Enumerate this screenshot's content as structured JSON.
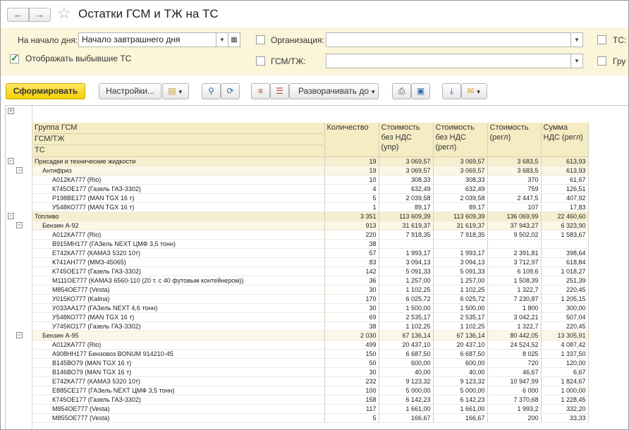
{
  "window": {
    "title": "Остатки ГСМ и ТЖ  на ТС"
  },
  "nav": {
    "back": "←",
    "forward": "→",
    "favorite": "☆"
  },
  "filters": {
    "start_label": "На начало дня:",
    "start_value": "Начало завтрашнего дня",
    "show_retired_label": "Отображать выбывшие ТС",
    "show_retired_checked": true,
    "org_label": "Организация:",
    "org_value": "",
    "fuel_label": "ГСМ/ТЖ:",
    "fuel_value": "",
    "ts_label": "ТС:",
    "group_label": "Гру"
  },
  "toolbar": {
    "generate": "Сформировать",
    "settings": "Настройки...",
    "expand": "Разворачивать до"
  },
  "table": {
    "header": {
      "group_lines": [
        "Группа ГСМ",
        "ГСМ/ТЖ",
        "ТС"
      ],
      "qty": "Количество",
      "cost_upr": [
        "Стоимость",
        "без НДС",
        "(упр)"
      ],
      "cost_regl": [
        "Стоимость",
        "без НДС",
        "(регл)"
      ],
      "cost_regl2": [
        "Стоимость",
        "(регл)"
      ],
      "vat": [
        "Сумма",
        "НДС (регл)"
      ]
    },
    "rows": [
      {
        "level": 1,
        "name": "Присадки и технические жидкости",
        "qty": "19",
        "c1": "3 069,57",
        "c2": "3 069,57",
        "c3": "3 683,5",
        "vat": "613,93"
      },
      {
        "level": 2,
        "name": "Антифриз",
        "qty": "19",
        "c1": "3 069,57",
        "c2": "3 069,57",
        "c3": "3 683,5",
        "vat": "613,93"
      },
      {
        "level": 3,
        "name": "А012КА777 (Rio)",
        "qty": "10",
        "c1": "308,33",
        "c2": "308,33",
        "c3": "370",
        "vat": "61,67"
      },
      {
        "level": 3,
        "name": "К745ОЕ177 (Газель ГАЗ-3302)",
        "qty": "4",
        "c1": "632,49",
        "c2": "632,49",
        "c3": "759",
        "vat": "126,51"
      },
      {
        "level": 3,
        "name": "Р198ВЕ177 (MAN TGX 16 т)",
        "qty": "5",
        "c1": "2 039,58",
        "c2": "2 039,58",
        "c3": "2 447,5",
        "vat": "407,92"
      },
      {
        "level": 3,
        "name": "У548КО777 (MAN TGX  16 т)",
        "qty": "1",
        "c1": "89,17",
        "c2": "89,17",
        "c3": "107",
        "vat": "17,83"
      },
      {
        "level": 1,
        "name": "Топливо",
        "qty": "3 351",
        "c1": "113 609,39",
        "c2": "113 609,39",
        "c3": "136 069,99",
        "vat": "22 460,60"
      },
      {
        "level": 2,
        "name": "Бензин А-92",
        "qty": "913",
        "c1": "31 619,37",
        "c2": "31 619,37",
        "c3": "37 943,27",
        "vat": "6 323,90"
      },
      {
        "level": 3,
        "name": "А012КА777 (Rio)",
        "qty": "220",
        "c1": "7 918,35",
        "c2": "7 918,35",
        "c3": "9 502,02",
        "vat": "1 583,67"
      },
      {
        "level": 3,
        "name": "В915МН177 (ГАЗель NEXT ЦМФ 3,5 тонн)",
        "qty": "38",
        "c1": "",
        "c2": "",
        "c3": "",
        "vat": ""
      },
      {
        "level": 3,
        "name": "Е742КА777 (КАМАЗ 5320 10т)",
        "qty": "57",
        "c1": "1 993,17",
        "c2": "1 993,17",
        "c3": "2 391,81",
        "vat": "398,64"
      },
      {
        "level": 3,
        "name": "К741АН777 (ММЗ-45065)",
        "qty": "83",
        "c1": "3 094,13",
        "c2": "3 094,13",
        "c3": "3 712,97",
        "vat": "618,84"
      },
      {
        "level": 3,
        "name": "К745ОЕ177 (Газель ГАЗ-3302)",
        "qty": "142",
        "c1": "5 091,33",
        "c2": "5 091,33",
        "c3": "6 109,6",
        "vat": "1 018,27"
      },
      {
        "level": 3,
        "name": "М111ОЕ777 (КАМАЗ 6560-110 (20 т. с 40 футовым контейнером))",
        "qty": "36",
        "c1": "1 257,00",
        "c2": "1 257,00",
        "c3": "1 508,39",
        "vat": "251,39"
      },
      {
        "level": 3,
        "name": "М854ОЕ777 (Vesta)",
        "qty": "30",
        "c1": "1 102,25",
        "c2": "1 102,25",
        "c3": "1 322,7",
        "vat": "220,45"
      },
      {
        "level": 3,
        "name": "У015КО777 (Kalina)",
        "qty": "170",
        "c1": "6 025,72",
        "c2": "6 025,72",
        "c3": "7 230,87",
        "vat": "1 205,15"
      },
      {
        "level": 3,
        "name": "У033АА177 (ГАЗель NEXT 4,6 тонн)",
        "qty": "30",
        "c1": "1 500,00",
        "c2": "1 500,00",
        "c3": "1 800",
        "vat": "300,00"
      },
      {
        "level": 3,
        "name": "У548КО777 (MAN TGX  16 т)",
        "qty": "69",
        "c1": "2 535,17",
        "c2": "2 535,17",
        "c3": "3 042,21",
        "vat": "507,04"
      },
      {
        "level": 3,
        "name": "У745КО177 (Газель ГАЗ-3302)",
        "qty": "38",
        "c1": "1 102,25",
        "c2": "1 102,25",
        "c3": "1 322,7",
        "vat": "220,45"
      },
      {
        "level": 2,
        "name": "Бензин А-95",
        "qty": "2 030",
        "c1": "67 136,14",
        "c2": "67 136,14",
        "c3": "80 442,05",
        "vat": "13 305,91"
      },
      {
        "level": 3,
        "name": "А012КА777 (Rio)",
        "qty": "499",
        "c1": "20 437,10",
        "c2": "20 437,10",
        "c3": "24 524,52",
        "vat": "4 087,42"
      },
      {
        "level": 3,
        "name": "А908НН177 Бензовоз BONUM 914210-45",
        "qty": "150",
        "c1": "6 687,50",
        "c2": "6 687,50",
        "c3": "8 025",
        "vat": "1 337,50"
      },
      {
        "level": 3,
        "name": "В145ВО79 (MAN TGX 16 т)",
        "qty": "50",
        "c1": "600,00",
        "c2": "600,00",
        "c3": "720",
        "vat": "120,00"
      },
      {
        "level": 3,
        "name": "В146ВО79 (MAN TGX 16 т)",
        "qty": "30",
        "c1": "40,00",
        "c2": "40,00",
        "c3": "46,67",
        "vat": "6,67"
      },
      {
        "level": 3,
        "name": "Е742КА777 (КАМАЗ 5320 10т)",
        "qty": "232",
        "c1": "9 123,32",
        "c2": "9 123,32",
        "c3": "10 947,99",
        "vat": "1 824,67"
      },
      {
        "level": 3,
        "name": "Е885СЕ177 (ГАЗель NEXT ЦМФ 3,5 тонн)",
        "qty": "100",
        "c1": "5 000,00",
        "c2": "5 000,00",
        "c3": "6 000",
        "vat": "1 000,00"
      },
      {
        "level": 3,
        "name": "К745ОЕ177 (Газель ГАЗ-3302)",
        "qty": "158",
        "c1": "6 142,23",
        "c2": "6 142,23",
        "c3": "7 370,68",
        "vat": "1 228,45"
      },
      {
        "level": 3,
        "name": "М854ОЕ777 (Vesta)",
        "qty": "117",
        "c1": "1 661,00",
        "c2": "1 661,00",
        "c3": "1 993,2",
        "vat": "332,20"
      },
      {
        "level": 3,
        "name": "М855ОЕ777 (Vesta)",
        "qty": "5",
        "c1": "166,67",
        "c2": "166,67",
        "c3": "200",
        "vat": "33,33"
      }
    ]
  }
}
